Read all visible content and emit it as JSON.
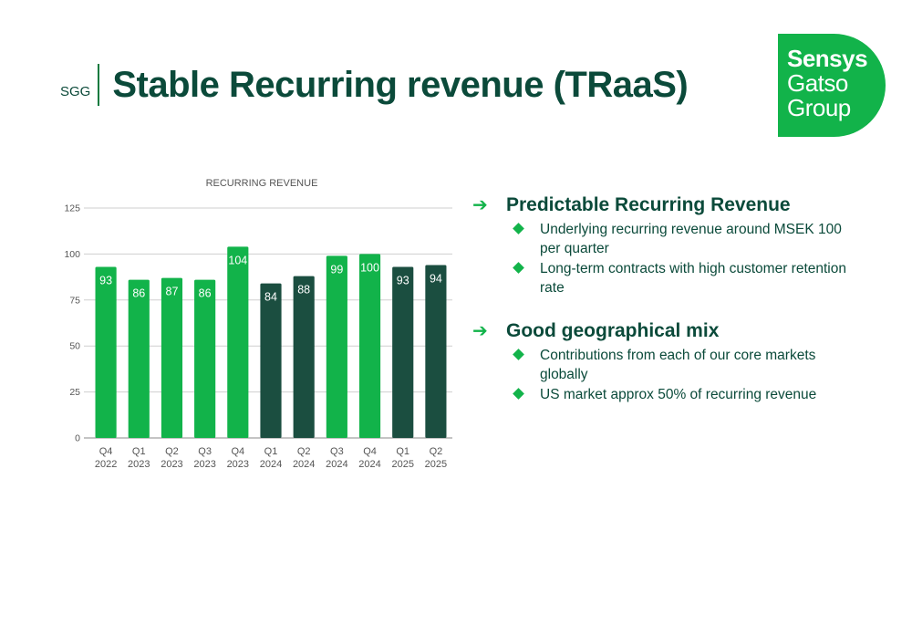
{
  "header": {
    "ticker": "SGG",
    "title": "Stable Recurring revenue (TRaaS)"
  },
  "logo": {
    "line1": "Sensys",
    "line2": "Gatso",
    "line3": "Group"
  },
  "colors": {
    "light_green": "#12b34a",
    "dark_green": "#1b4e40",
    "text": "#0b4a3a"
  },
  "chart_data": {
    "type": "bar",
    "title": "RECURRING REVENUE",
    "categories": [
      "Q4\n2022",
      "Q1\n2023",
      "Q2\n2023",
      "Q3\n2023",
      "Q4\n2023",
      "Q1\n2024",
      "Q2\n2024",
      "Q3\n2024",
      "Q4\n2024",
      "Q1\n2025",
      "Q2\n2025"
    ],
    "values": [
      93,
      86,
      87,
      86,
      104,
      84,
      88,
      99,
      100,
      93,
      94
    ],
    "bar_colors": [
      "#12b34a",
      "#12b34a",
      "#12b34a",
      "#12b34a",
      "#12b34a",
      "#1b4e40",
      "#1b4e40",
      "#12b34a",
      "#12b34a",
      "#1b4e40",
      "#1b4e40"
    ],
    "yticks": [
      0,
      25,
      50,
      75,
      100,
      125
    ],
    "ylim": [
      0,
      125
    ],
    "grid": true,
    "xlabel": "",
    "ylabel": ""
  },
  "bullets": [
    {
      "heading": "Predictable Recurring Revenue",
      "items": [
        "Underlying recurring revenue around MSEK 100 per quarter",
        "Long-term contracts with high customer retention rate"
      ]
    },
    {
      "heading": "Good geographical mix",
      "items": [
        "Contributions from each of our core markets globally",
        "US market approx 50% of recurring revenue"
      ]
    }
  ]
}
